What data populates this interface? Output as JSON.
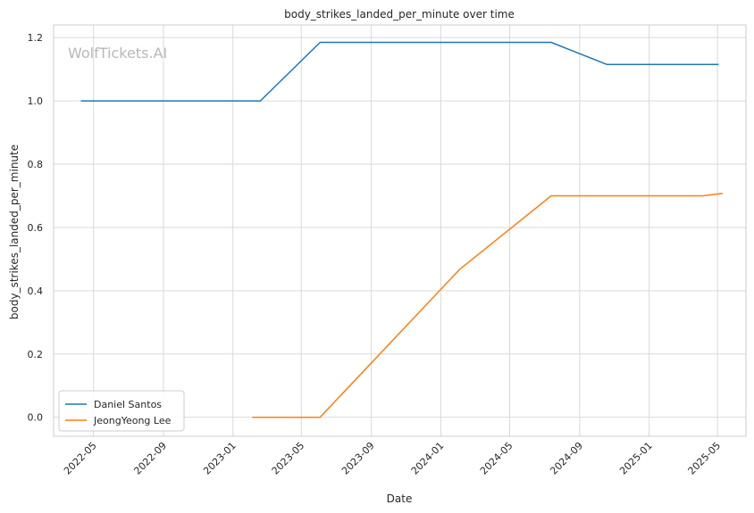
{
  "chart_data": {
    "type": "line",
    "title": "body_strikes_landed_per_minute over time",
    "xlabel": "Date",
    "ylabel": "body_strikes_landed_per_minute",
    "watermark": "WolfTickets.AI",
    "x_ticks": [
      "2022-05",
      "2022-09",
      "2023-01",
      "2023-05",
      "2023-09",
      "2024-01",
      "2024-05",
      "2024-09",
      "2025-01",
      "2025-05"
    ],
    "xlim": [
      "2022-02-20",
      "2025-06-20"
    ],
    "y_ticks": [
      "0.0",
      "0.2",
      "0.4",
      "0.6",
      "0.8",
      "1.0",
      "1.2"
    ],
    "ylim": [
      -0.06,
      1.24
    ],
    "grid": true,
    "legend_position": "lower-left",
    "series": [
      {
        "name": "Daniel Santos",
        "color": "#1f77b4",
        "points": [
          {
            "x": "2022-04-09",
            "y": 1.0
          },
          {
            "x": "2023-02-18",
            "y": 1.0
          },
          {
            "x": "2023-06-03",
            "y": 1.185
          },
          {
            "x": "2024-07-13",
            "y": 1.185
          },
          {
            "x": "2024-10-19",
            "y": 1.115
          },
          {
            "x": "2025-05-03",
            "y": 1.115
          }
        ]
      },
      {
        "name": "JeongYeong Lee",
        "color": "#ff7f0e",
        "points": [
          {
            "x": "2023-02-04",
            "y": 0.0
          },
          {
            "x": "2023-06-03",
            "y": 0.0
          },
          {
            "x": "2024-02-03",
            "y": 0.467
          },
          {
            "x": "2024-07-13",
            "y": 0.7
          },
          {
            "x": "2025-04-05",
            "y": 0.7
          },
          {
            "x": "2025-05-10",
            "y": 0.708
          }
        ]
      }
    ]
  }
}
